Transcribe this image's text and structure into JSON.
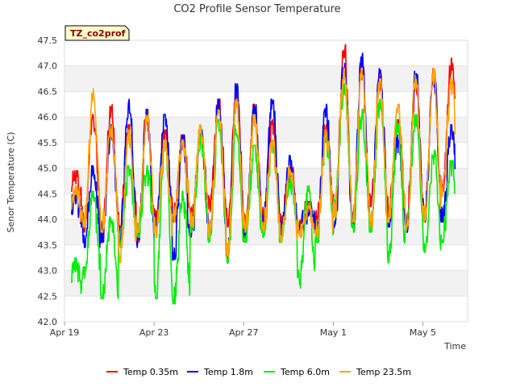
{
  "chart_data": {
    "type": "line",
    "title": "CO2 Profile Sensor Temperature",
    "xlabel": "Time",
    "ylabel": "Senor Temperature (C)",
    "site_label": "TZ_co2prof",
    "ylim": [
      42.0,
      47.5
    ],
    "y_ticks": [
      42.0,
      42.5,
      43.0,
      43.5,
      44.0,
      44.5,
      45.0,
      45.5,
      46.0,
      46.5,
      47.0,
      47.5
    ],
    "xlim_days": [
      0,
      22.5
    ],
    "x_ticks": [
      {
        "day": 0,
        "label": "Apr 19"
      },
      {
        "day": 5,
        "label": "Apr 23"
      },
      {
        "day": 10,
        "label": "Apr 27"
      },
      {
        "day": 15,
        "label": "May 1"
      },
      {
        "day": 20,
        "label": "May 5"
      }
    ],
    "daily_peak_day_offset": 0.6,
    "series": [
      {
        "name": "Temp 0.35m",
        "color": "#ff0000",
        "x_start_day": 0.4,
        "x_end_day": 21.8,
        "daily_min": [
          44.3,
          43.8,
          43.7,
          43.9,
          43.6,
          44.0,
          44.0,
          44.1,
          44.2,
          43.9,
          43.8,
          44.0,
          43.9,
          43.8,
          44.0,
          44.1,
          43.9,
          44.3,
          44.1,
          43.9,
          44.0,
          44.6,
          44.8
        ],
        "daily_max": [
          44.9,
          46.0,
          46.2,
          45.8,
          46.1,
          45.7,
          45.6,
          45.7,
          46.3,
          46.5,
          46.2,
          45.9,
          45.0,
          44.3,
          45.8,
          47.4,
          47.0,
          46.8,
          45.9,
          46.7,
          46.9,
          47.1,
          46.1
        ]
      },
      {
        "name": "Temp 1.8m",
        "color": "#0000ff",
        "x_start_day": 0.4,
        "x_end_day": 21.8,
        "daily_min": [
          43.9,
          43.5,
          43.6,
          43.6,
          43.5,
          43.9,
          43.2,
          43.7,
          43.7,
          43.2,
          43.7,
          43.9,
          43.7,
          43.8,
          43.7,
          43.9,
          43.9,
          43.9,
          43.9,
          43.8,
          44.0,
          44.0,
          44.0
        ],
        "daily_max": [
          44.5,
          45.0,
          45.8,
          46.3,
          46.1,
          46.0,
          45.6,
          45.7,
          46.3,
          46.6,
          46.2,
          46.3,
          45.2,
          44.2,
          46.2,
          47.0,
          47.2,
          46.9,
          45.6,
          46.9,
          46.9,
          45.8,
          44.2
        ]
      },
      {
        "name": "Temp 6.0m",
        "color": "#00ee00",
        "x_start_day": 0.4,
        "x_end_day": 21.8,
        "daily_min": [
          42.6,
          42.9,
          42.5,
          43.5,
          43.7,
          42.5,
          42.4,
          43.8,
          43.6,
          43.2,
          43.6,
          43.7,
          43.6,
          42.7,
          43.6,
          44.4,
          43.8,
          43.8,
          43.2,
          43.8,
          43.4,
          43.6,
          43.6
        ],
        "daily_max": [
          43.2,
          44.5,
          44.0,
          45.0,
          45.0,
          45.5,
          44.5,
          45.6,
          45.9,
          45.8,
          45.4,
          45.5,
          44.8,
          44.6,
          45.6,
          46.6,
          46.1,
          46.3,
          45.9,
          46.0,
          45.3,
          45.1,
          45.0
        ]
      },
      {
        "name": "Temp 23.5m",
        "color": "#ffa500",
        "x_start_day": 0.4,
        "x_end_day": 21.8,
        "daily_min": [
          44.0,
          43.9,
          43.8,
          43.2,
          43.8,
          43.7,
          44.0,
          43.9,
          43.7,
          43.3,
          43.8,
          43.8,
          43.6,
          43.7,
          43.7,
          44.1,
          44.0,
          43.9,
          44.0,
          43.8,
          44.0,
          44.5,
          44.6
        ],
        "daily_max": [
          44.6,
          46.5,
          45.8,
          45.7,
          46.0,
          45.5,
          45.5,
          45.8,
          46.1,
          46.3,
          46.0,
          45.5,
          45.0,
          44.2,
          45.7,
          46.9,
          46.9,
          46.7,
          46.2,
          46.8,
          46.9,
          46.7,
          45.6
        ]
      }
    ]
  }
}
